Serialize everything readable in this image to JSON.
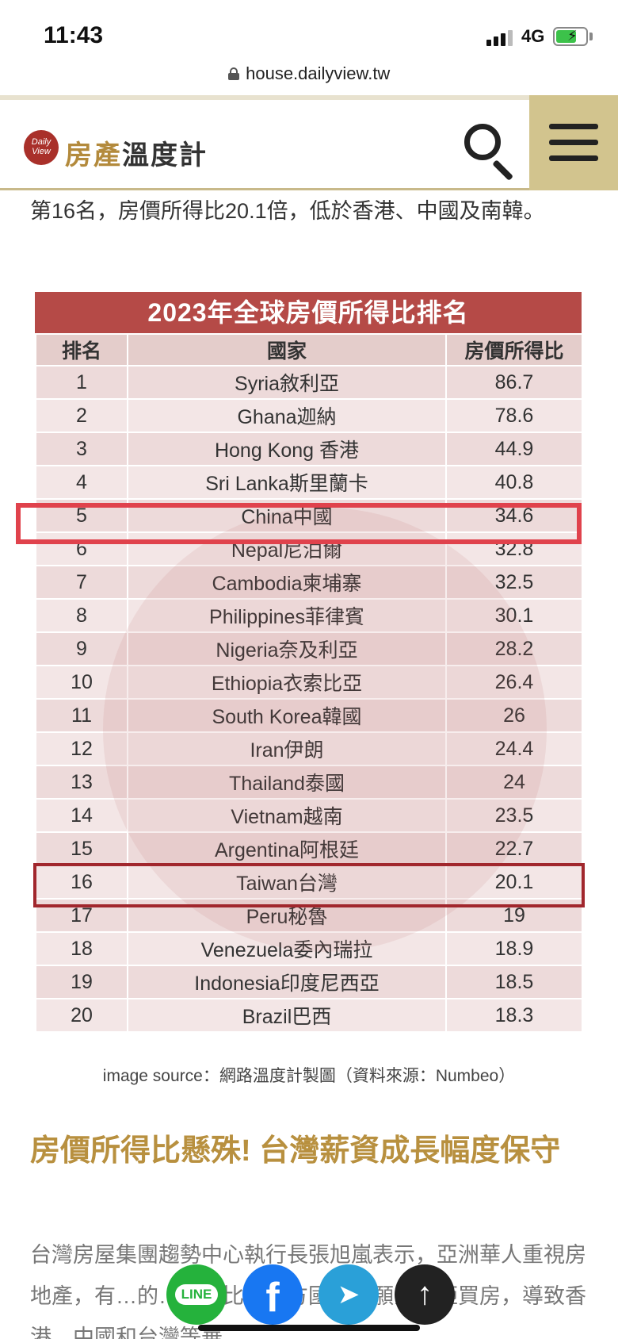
{
  "status_bar": {
    "time": "11:43",
    "network": "4G"
  },
  "url_bar": {
    "url": "house.dailyview.tw"
  },
  "header": {
    "logo_badge_top": "Daily",
    "logo_badge_bottom": "View",
    "logo_gold": "房產",
    "logo_dark": "溫度計"
  },
  "article": {
    "paragraph1": "第16名，房價所得比20.1倍，低於香港、中國及南韓。",
    "section_heading": "房價所得比懸殊! 台灣薪資成長幅度保守",
    "paragraph2": "台灣房屋集團趨勢中心執行長張旭嵐表示，亞洲華人重視房地產，有…的…因此比起西方國家更願意勢砸買房，導致香港、中國和台灣等華"
  },
  "table": {
    "title": "2023年全球房價所得比排名",
    "headers": {
      "rank": "排名",
      "country": "國家",
      "ratio": "房價所得比"
    },
    "rows": [
      {
        "rank": "1",
        "country": "Syria敘利亞",
        "ratio": "86.7"
      },
      {
        "rank": "2",
        "country": "Ghana迦納",
        "ratio": "78.6"
      },
      {
        "rank": "3",
        "country": "Hong Kong 香港",
        "ratio": "44.9"
      },
      {
        "rank": "4",
        "country": "Sri Lanka斯里蘭卡",
        "ratio": "40.8"
      },
      {
        "rank": "5",
        "country": "China中國",
        "ratio": "34.6"
      },
      {
        "rank": "6",
        "country": "Nepal尼泊爾",
        "ratio": "32.8"
      },
      {
        "rank": "7",
        "country": "Cambodia柬埔寨",
        "ratio": "32.5"
      },
      {
        "rank": "8",
        "country": "Philippines菲律賓",
        "ratio": "30.1"
      },
      {
        "rank": "9",
        "country": "Nigeria奈及利亞",
        "ratio": "28.2"
      },
      {
        "rank": "10",
        "country": "Ethiopia衣索比亞",
        "ratio": "26.4"
      },
      {
        "rank": "11",
        "country": "South Korea韓國",
        "ratio": "26"
      },
      {
        "rank": "12",
        "country": "Iran伊朗",
        "ratio": "24.4"
      },
      {
        "rank": "13",
        "country": "Thailand泰國",
        "ratio": "24"
      },
      {
        "rank": "14",
        "country": "Vietnam越南",
        "ratio": "23.5"
      },
      {
        "rank": "15",
        "country": "Argentina阿根廷",
        "ratio": "22.7"
      },
      {
        "rank": "16",
        "country": "Taiwan台灣",
        "ratio": "20.1"
      },
      {
        "rank": "17",
        "country": "Peru秘魯",
        "ratio": "19"
      },
      {
        "rank": "18",
        "country": "Venezuela委內瑞拉",
        "ratio": "18.9"
      },
      {
        "rank": "19",
        "country": "Indonesia印度尼西亞",
        "ratio": "18.5"
      },
      {
        "rank": "20",
        "country": "Brazil巴西",
        "ratio": "18.3"
      }
    ],
    "caption": "image source：網路溫度計製圖（資料來源：Numbeo）"
  },
  "share_bar": {
    "line_label": "LINE",
    "facebook_glyph": "f",
    "telegram_glyph": "➤",
    "top_glyph": "↑"
  },
  "colors": {
    "accent_gold": "#b8903f",
    "table_header": "#b54a47",
    "highlight_red": "#e0424c",
    "highlight_dark": "#a1272d"
  }
}
